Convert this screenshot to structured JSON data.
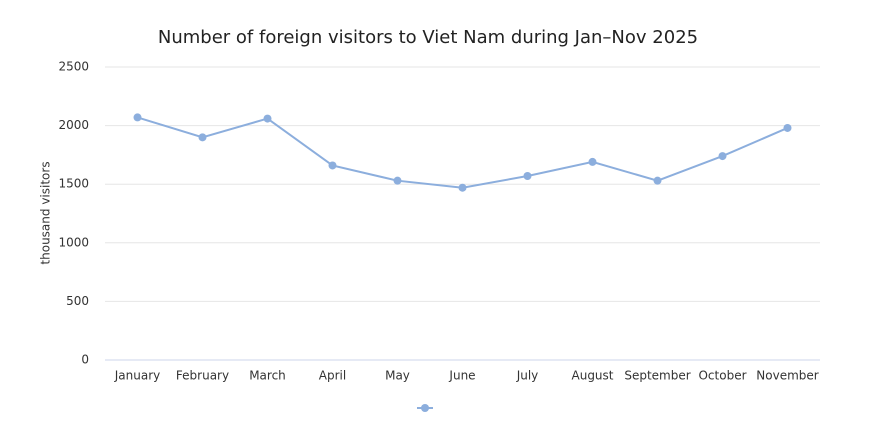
{
  "chart_data": {
    "type": "line",
    "title": "Number of foreign visitors to Viet Nam during Jan–Nov 2025",
    "y_label": "thousand visitors",
    "categories": [
      "January",
      "February",
      "March",
      "April",
      "May",
      "June",
      "July",
      "August",
      "September",
      "October",
      "November"
    ],
    "series": [
      {
        "color": "#8caedd",
        "values": [
          2070,
          1900,
          2060,
          1660,
          1530,
          1470,
          1570,
          1690,
          1530,
          1740,
          1980
        ]
      }
    ],
    "ylim": [
      0,
      2500
    ],
    "yticks": [
      0,
      500,
      1000,
      1500,
      2000,
      2500
    ],
    "grid": true
  }
}
